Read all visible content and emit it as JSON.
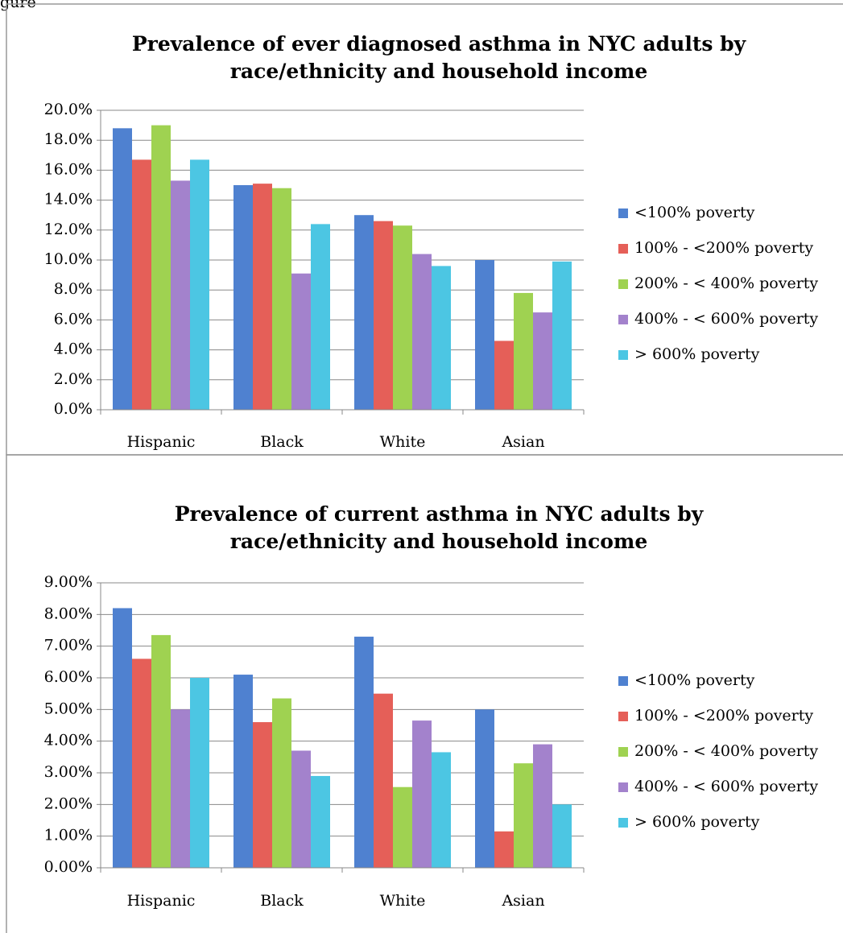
{
  "caption": "gure",
  "chart_data": [
    {
      "type": "bar",
      "title": "Prevalence of ever diagnosed asthma in NYC adults by race/ethnicity and household income",
      "categories": [
        "Hispanic",
        "Black",
        "White",
        "Asian"
      ],
      "series": [
        {
          "name": "<100% poverty",
          "color": "#4f81d0",
          "values": [
            18.8,
            15.0,
            13.0,
            10.0
          ]
        },
        {
          "name": "100% - <200% poverty",
          "color": "#e55f58",
          "values": [
            16.7,
            15.1,
            12.6,
            4.6
          ]
        },
        {
          "name": "200% - < 400% poverty",
          "color": "#9fd251",
          "values": [
            19.0,
            14.8,
            12.3,
            7.8
          ]
        },
        {
          "name": "400% - < 600% poverty",
          "color": "#a382cc",
          "values": [
            15.3,
            9.1,
            10.4,
            6.5
          ]
        },
        {
          "name": "> 600% poverty",
          "color": "#4cc6e3",
          "values": [
            16.7,
            12.4,
            9.6,
            9.9
          ]
        }
      ],
      "ylim": [
        0,
        20
      ],
      "yticks": [
        {
          "value": 0,
          "label": "0.0%"
        },
        {
          "value": 2,
          "label": "2.0%"
        },
        {
          "value": 4,
          "label": "4.0%"
        },
        {
          "value": 6,
          "label": "6.0%"
        },
        {
          "value": 8,
          "label": "8.0%"
        },
        {
          "value": 10,
          "label": "10.0%"
        },
        {
          "value": 12,
          "label": "12.0%"
        },
        {
          "value": 14,
          "label": "14.0%"
        },
        {
          "value": 16,
          "label": "16.0%"
        },
        {
          "value": 18,
          "label": "18.0%"
        },
        {
          "value": 20,
          "label": "20.0%"
        }
      ],
      "grid": true,
      "legend": "right"
    },
    {
      "type": "bar",
      "title": "Prevalence of current asthma in NYC adults by race/ethnicity and household income",
      "categories": [
        "Hispanic",
        "Black",
        "White",
        "Asian"
      ],
      "series": [
        {
          "name": "<100% poverty",
          "color": "#4f81d0",
          "values": [
            8.2,
            6.1,
            7.3,
            5.0
          ]
        },
        {
          "name": "100% - <200% poverty",
          "color": "#e55f58",
          "values": [
            6.6,
            4.6,
            5.5,
            1.15
          ]
        },
        {
          "name": "200% - < 400% poverty",
          "color": "#9fd251",
          "values": [
            7.35,
            5.35,
            2.55,
            3.3
          ]
        },
        {
          "name": "400% - < 600% poverty",
          "color": "#a382cc",
          "values": [
            5.0,
            3.7,
            4.65,
            3.9
          ]
        },
        {
          "name": "> 600% poverty",
          "color": "#4cc6e3",
          "values": [
            6.0,
            2.9,
            3.65,
            2.0
          ]
        }
      ],
      "ylim": [
        0,
        9
      ],
      "yticks": [
        {
          "value": 0,
          "label": "0.00%"
        },
        {
          "value": 1,
          "label": "1.00%"
        },
        {
          "value": 2,
          "label": "2.00%"
        },
        {
          "value": 3,
          "label": "3.00%"
        },
        {
          "value": 4,
          "label": "4.00%"
        },
        {
          "value": 5,
          "label": "5.00%"
        },
        {
          "value": 6,
          "label": "6.00%"
        },
        {
          "value": 7,
          "label": "7.00%"
        },
        {
          "value": 8,
          "label": "8.00%"
        },
        {
          "value": 9,
          "label": "9.00%"
        }
      ],
      "grid": true,
      "legend": "right"
    }
  ]
}
